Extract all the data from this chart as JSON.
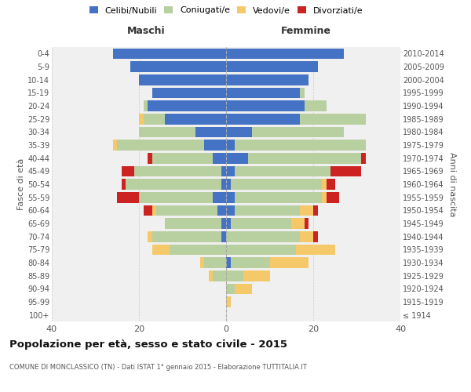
{
  "age_groups": [
    "100+",
    "95-99",
    "90-94",
    "85-89",
    "80-84",
    "75-79",
    "70-74",
    "65-69",
    "60-64",
    "55-59",
    "50-54",
    "45-49",
    "40-44",
    "35-39",
    "30-34",
    "25-29",
    "20-24",
    "15-19",
    "10-14",
    "5-9",
    "0-4"
  ],
  "birth_years": [
    "≤ 1914",
    "1915-1919",
    "1920-1924",
    "1925-1929",
    "1930-1934",
    "1935-1939",
    "1940-1944",
    "1945-1949",
    "1950-1954",
    "1955-1959",
    "1960-1964",
    "1965-1969",
    "1970-1974",
    "1975-1979",
    "1980-1984",
    "1985-1989",
    "1990-1994",
    "1995-1999",
    "2000-2004",
    "2005-2009",
    "2010-2014"
  ],
  "male": {
    "celibi": [
      0,
      0,
      0,
      0,
      0,
      0,
      1,
      1,
      2,
      3,
      1,
      1,
      3,
      5,
      7,
      14,
      18,
      17,
      20,
      22,
      26
    ],
    "coniugati": [
      0,
      0,
      0,
      3,
      5,
      13,
      16,
      13,
      14,
      17,
      22,
      20,
      14,
      20,
      13,
      5,
      1,
      0,
      0,
      0,
      0
    ],
    "vedovi": [
      0,
      0,
      0,
      1,
      1,
      4,
      1,
      0,
      1,
      0,
      0,
      0,
      0,
      1,
      0,
      1,
      0,
      0,
      0,
      0,
      0
    ],
    "divorziati": [
      0,
      0,
      0,
      0,
      0,
      0,
      0,
      0,
      2,
      5,
      1,
      3,
      1,
      0,
      0,
      0,
      0,
      0,
      0,
      0,
      0
    ]
  },
  "female": {
    "nubili": [
      0,
      0,
      0,
      0,
      1,
      0,
      0,
      1,
      2,
      2,
      1,
      2,
      5,
      2,
      6,
      17,
      18,
      17,
      19,
      21,
      27
    ],
    "coniugate": [
      0,
      0,
      2,
      4,
      9,
      16,
      17,
      14,
      15,
      20,
      21,
      22,
      26,
      30,
      21,
      15,
      5,
      1,
      0,
      0,
      0
    ],
    "vedove": [
      0,
      1,
      4,
      6,
      9,
      9,
      3,
      3,
      3,
      1,
      1,
      0,
      0,
      0,
      0,
      0,
      0,
      0,
      0,
      0,
      0
    ],
    "divorziate": [
      0,
      0,
      0,
      0,
      0,
      0,
      1,
      1,
      1,
      3,
      2,
      7,
      1,
      0,
      0,
      0,
      0,
      0,
      0,
      0,
      0
    ]
  },
  "colors": {
    "celibi": "#4472c4",
    "coniugati": "#b8cfa0",
    "vedovi": "#f5c96a",
    "divorziati": "#cc2222"
  },
  "xlim": 40,
  "title": "Popolazione per età, sesso e stato civile - 2015",
  "subtitle": "COMUNE DI MONCLASSICO (TN) - Dati ISTAT 1° gennaio 2015 - Elaborazione TUTTITALIA.IT",
  "ylabel_left": "Fasce di età",
  "ylabel_right": "Anni di nascita",
  "xlabel_left": "Maschi",
  "xlabel_right": "Femmine",
  "bg_color": "#f0f0f0",
  "grid_color": "#cccccc"
}
